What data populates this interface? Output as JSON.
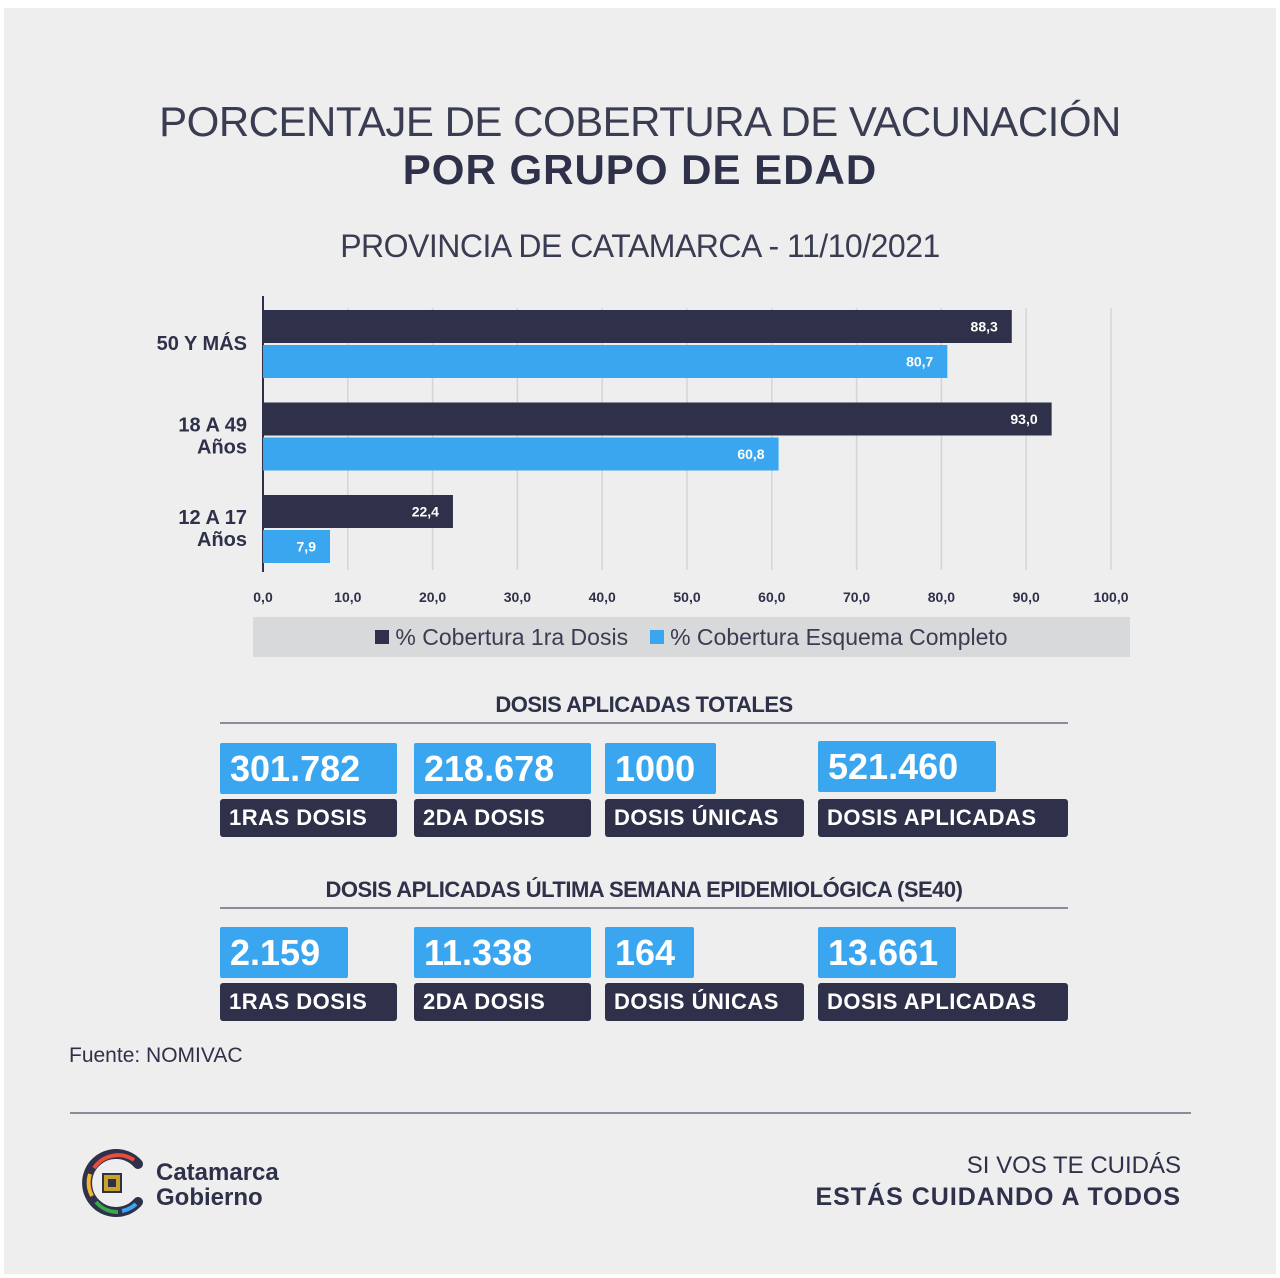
{
  "header": {
    "title_line1": "PORCENTAJE DE COBERTURA DE VACUNACIÓN",
    "title_line2": "POR GRUPO DE EDAD",
    "subtitle": "PROVINCIA DE CATAMARCA - 11/10/2021"
  },
  "colors": {
    "first_dose": "#2e3149",
    "complete_scheme": "#3aa6f0",
    "background": "#eeeeef"
  },
  "chart_data": {
    "type": "bar",
    "orientation": "horizontal",
    "categories": [
      [
        "50 Y MÁS"
      ],
      [
        "18 A 49",
        "Años"
      ],
      [
        "12 A 17",
        "Años"
      ]
    ],
    "series": [
      {
        "name": "% Cobertura 1ra Dosis",
        "values": [
          88.3,
          93.0,
          22.4
        ],
        "labels": [
          "88,3",
          "93,0",
          "22,4"
        ],
        "color": "#2e3149"
      },
      {
        "name": "% Cobertura Esquema Completo",
        "values": [
          80.7,
          60.8,
          7.9
        ],
        "labels": [
          "80,7",
          "60,8",
          "7,9"
        ],
        "color": "#3aa6f0"
      }
    ],
    "xlim": [
      0,
      100
    ],
    "x_ticks": [
      "0,0",
      "10,0",
      "20,0",
      "30,0",
      "40,0",
      "50,0",
      "60,0",
      "70,0",
      "80,0",
      "90,0",
      "100,0"
    ],
    "grid": true,
    "legend_position": "bottom"
  },
  "totals": {
    "title": "DOSIS APLICADAS TOTALES",
    "items": [
      {
        "value": "301.782",
        "label": "1RAS DOSIS"
      },
      {
        "value": "218.678",
        "label": "2DA DOSIS"
      },
      {
        "value": "1000",
        "label": "DOSIS ÚNICAS"
      },
      {
        "value": "521.460",
        "label": "DOSIS APLICADAS"
      }
    ]
  },
  "weekly": {
    "title": "DOSIS APLICADAS ÚLTIMA SEMANA EPIDEMIOLÓGICA (SE40)",
    "items": [
      {
        "value": "2.159",
        "label": "1RAS DOSIS"
      },
      {
        "value": "11.338",
        "label": "2DA DOSIS"
      },
      {
        "value": "164",
        "label": "DOSIS ÚNICAS"
      },
      {
        "value": "13.661",
        "label": "DOSIS APLICADAS"
      }
    ]
  },
  "source": "Fuente: NOMIVAC",
  "footer": {
    "logo_line1": "Catamarca",
    "logo_line2": "Gobierno",
    "slogan_line1": "SI VOS TE CUIDÁS",
    "slogan_line2": "ESTÁS CUIDANDO A TODOS"
  }
}
